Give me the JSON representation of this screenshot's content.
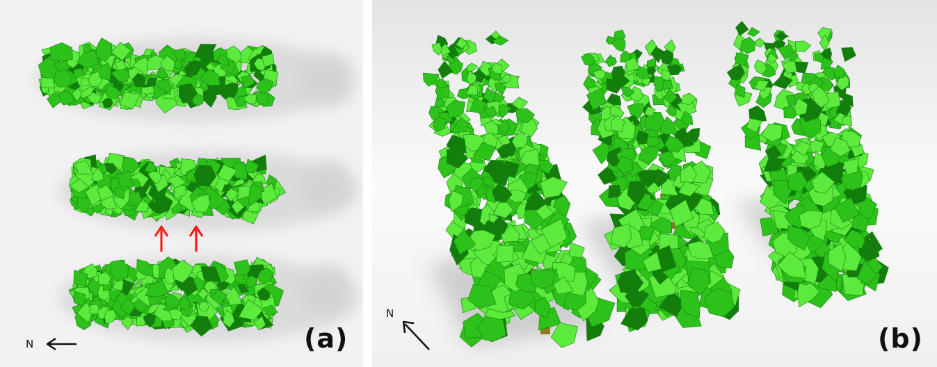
{
  "panels": [
    {
      "id": "a",
      "label": "(a)",
      "compass_label": "N",
      "annotation_color": "#ff0000"
    },
    {
      "id": "b",
      "label": "(b)",
      "compass_label": "N"
    }
  ],
  "colors": {
    "leaf_light": "#5cea3c",
    "leaf_mid": "#2cc21a",
    "leaf_dark": "#137e0c",
    "shadow": "#bdbdbd",
    "ground": "#efefef",
    "stem_base": "#8a7a1e"
  }
}
